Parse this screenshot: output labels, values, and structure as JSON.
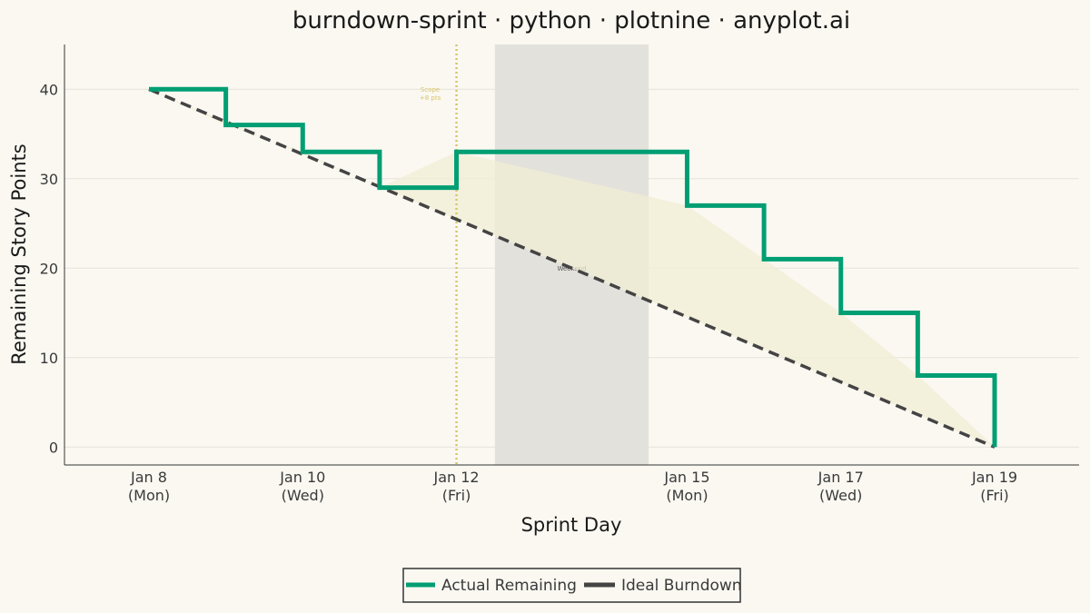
{
  "chart_data": {
    "type": "line",
    "title": "burndown-sprint · python · plotnine · anyplot.ai",
    "xlabel": "Sprint Day",
    "ylabel": "Remaining Story Points",
    "ylim": [
      -2,
      45
    ],
    "yticks": [
      0,
      10,
      20,
      30,
      40
    ],
    "x_start": "2024-01-08",
    "x_end": "2024-01-19",
    "xticks": [
      {
        "date": "2024-01-08",
        "label": "Jan 8",
        "sublabel": "(Mon)"
      },
      {
        "date": "2024-01-10",
        "label": "Jan 10",
        "sublabel": "(Wed)"
      },
      {
        "date": "2024-01-12",
        "label": "Jan 12",
        "sublabel": "(Fri)"
      },
      {
        "date": "2024-01-15",
        "label": "Jan 15",
        "sublabel": "(Mon)"
      },
      {
        "date": "2024-01-17",
        "label": "Jan 17",
        "sublabel": "(Wed)"
      },
      {
        "date": "2024-01-19",
        "label": "Jan 19",
        "sublabel": "(Fri)"
      }
    ],
    "grid": "horizontal",
    "legend_position": "bottom",
    "series": [
      {
        "name": "Actual Remaining",
        "style": "step",
        "color": "#009E73",
        "points": [
          {
            "date": "2024-01-08",
            "value": 40
          },
          {
            "date": "2024-01-09",
            "value": 36
          },
          {
            "date": "2024-01-10",
            "value": 33
          },
          {
            "date": "2024-01-11",
            "value": 29
          },
          {
            "date": "2024-01-12",
            "value": 33
          },
          {
            "date": "2024-01-15",
            "value": 27
          },
          {
            "date": "2024-01-16",
            "value": 21
          },
          {
            "date": "2024-01-17",
            "value": 15
          },
          {
            "date": "2024-01-18",
            "value": 8
          },
          {
            "date": "2024-01-19",
            "value": 0
          }
        ]
      },
      {
        "name": "Ideal Burndown",
        "style": "dashed",
        "color": "#444444",
        "points": [
          {
            "date": "2024-01-08",
            "value": 40
          },
          {
            "date": "2024-01-19",
            "value": 0
          }
        ]
      }
    ],
    "weekend_band": {
      "from": "2024-01-12T12:00",
      "to": "2024-01-14T12:00",
      "label": "Weekend",
      "color": "#E3E1DB"
    },
    "scope_change": {
      "date": "2024-01-12",
      "label_line1": "Scope",
      "label_line2": "+8 pts",
      "color": "#D8C56A"
    },
    "gap_fill_color": "#F0EDD4"
  }
}
